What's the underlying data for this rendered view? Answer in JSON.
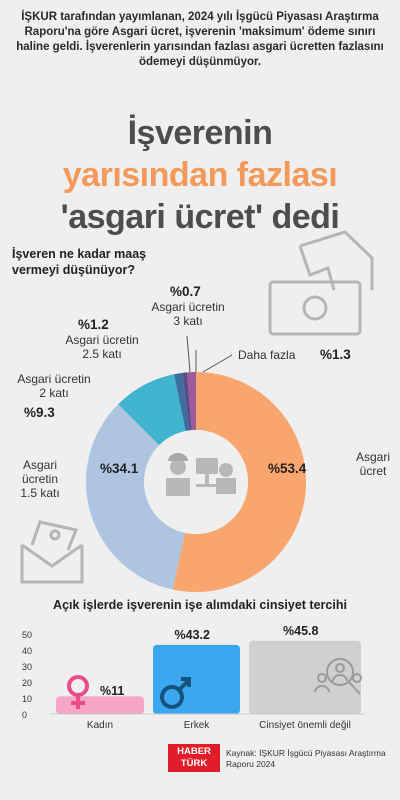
{
  "intro_text": "İŞKUR tarafından yayımlanan, 2024 yılı İşgücü Piyasası Araştırma Raporu'na göre Asgari ücret, işverenin 'maksimum' ödeme sınırı haline geldi. İşverenlerin yarısından fazlası asgari ücretten fazlasını ödemeyi düşünmüyor.",
  "headline": {
    "line1": "İşverenin",
    "line2": "yarısından fazlası",
    "line3": "'asgari ücret' dedi"
  },
  "footer": {
    "logo_top": "HABER",
    "logo_bottom": "TÜRK",
    "source": "Kaynak: İŞKUR İşgücü Piyasası Araştırma Raporu 2024"
  },
  "colors": {
    "asgari": "#f9a66e",
    "x15": "#aec4e0",
    "x2": "#41b4d0",
    "x25": "#3d6ea0",
    "x3": "#5a4a8c",
    "fazla": "#9b5a9a",
    "female": "#f6a5c6",
    "male": "#3aa7ee",
    "neutral": "#d0d0d0",
    "headline_accent": "#f39a5a"
  },
  "chart_data": [
    {
      "type": "pie",
      "question": "İşveren ne kadar maaş vermeyi düşünüyor?",
      "slices": [
        {
          "key": "asgari",
          "label": "Asgari ücret",
          "pct_label": "%53.4",
          "value": 53.4
        },
        {
          "key": "x15",
          "label": "Asgari ücretin 1.5 katı",
          "pct_label": "%34.1",
          "value": 34.1
        },
        {
          "key": "x2",
          "label": "Asgari ücretin 2 katı",
          "pct_label": "%9.3",
          "value": 9.3
        },
        {
          "key": "x25",
          "label": "Asgari ücretin 2.5 katı",
          "pct_label": "%1.2",
          "value": 1.2
        },
        {
          "key": "x3",
          "label": "Asgari ücretin 3 katı",
          "pct_label": "%0.7",
          "value": 0.7
        },
        {
          "key": "fazla",
          "label": "Daha fazla",
          "pct_label": "%1.3",
          "value": 1.3
        }
      ]
    },
    {
      "type": "bar",
      "title": "Açık işlerde işverenin işe alımdaki cinsiyet tercihi",
      "categories": [
        "Kadın",
        "Erkek",
        "Cinsiyet önemli değil"
      ],
      "values": [
        11,
        43.2,
        45.8
      ],
      "value_labels": [
        "%11",
        "%43.2",
        "%45.8"
      ],
      "ylim": [
        0,
        50
      ],
      "yticks": [
        0,
        10,
        20,
        30,
        40,
        50
      ]
    }
  ]
}
